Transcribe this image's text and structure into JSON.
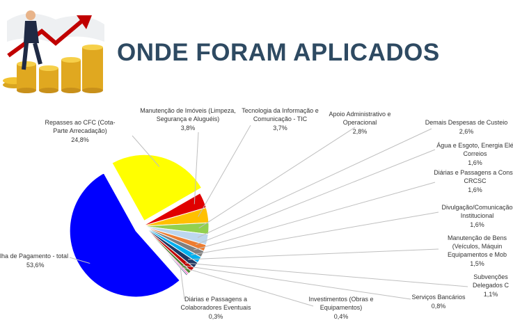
{
  "chart_data": {
    "type": "pie",
    "title": "ONDE FORAM APLICADOS",
    "categories": [
      "Repasses ao CFC (Cota-Parte Arrecadação)",
      "Manutenção de Imóveis (Limpeza, Segurança e Aluguéis)",
      "Tecnologia da Informação e Comunicação - TIC",
      "Apoio Administrativo e Operacional",
      "Demais Despesas de Custeio",
      "Água e Esgoto, Energia Elé Correios",
      "Diárias e Passagens a Conse CRCSC",
      "Divulgação/Comunicação Institucional",
      "Manutenção de Bens (Veículos, Máquin Equipamentos e Mob",
      "Subvenções Delegados C",
      "Serviços Bancários",
      "Investimentos (Obras e Equipamentos)",
      "Diárias e Passagens a Colaboradores Eventuais",
      "lha de Pagamento - total"
    ],
    "values": [
      24.8,
      3.8,
      3.7,
      2.8,
      2.6,
      1.6,
      1.6,
      1.6,
      1.5,
      1.1,
      0.8,
      0.4,
      0.3,
      53.6
    ],
    "value_labels": [
      "24,8%",
      "3,8%",
      "3,7%",
      "2,8%",
      "2,6%",
      "1,6%",
      "1,6%",
      "1,6%",
      "1,5%",
      "1,1%",
      "0,8%",
      "0,4%",
      "0,3%",
      "53,6%"
    ],
    "colors": [
      "#ffff00",
      "#e00000",
      "#ffc000",
      "#92d050",
      "#bdd7ee",
      "#ed7d31",
      "#7f7f7f",
      "#00b0f0",
      "#1f3864",
      "#c00000",
      "#548235",
      "#ff66cc",
      "#203864",
      "#0000ff"
    ]
  }
}
